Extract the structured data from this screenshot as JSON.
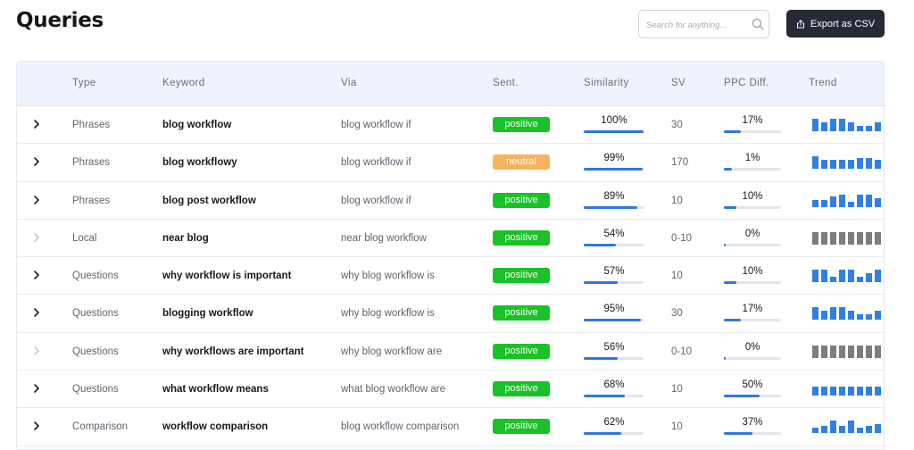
{
  "page": {
    "title": "Queries"
  },
  "search": {
    "placeholder": "Search for anything..."
  },
  "toolbar": {
    "export_label": "Export as CSV"
  },
  "colors": {
    "positive": "#19c227",
    "neutral": "#f6b45f",
    "accent": "#2f77e0",
    "trend_active": "#2f7fe8",
    "trend_flat": "#7d7d7d"
  },
  "table": {
    "headers": {
      "type": "Type",
      "keyword": "Keyword",
      "via": "Via",
      "sent": "Sent.",
      "similarity": "Similarity",
      "sv": "SV",
      "ppc": "PPC Diff.",
      "trend": "Trend"
    },
    "rows": [
      {
        "expandable": true,
        "type": "Phrases",
        "keyword": "blog workflow",
        "via": "blog workflow if",
        "sent": "positive",
        "similarity": "100%",
        "sim_value": 1.0,
        "sv": "30",
        "ppc": "17%",
        "ppc_value": 0.17,
        "trend": [
          0.58,
          0.42,
          0.58,
          0.58,
          0.42,
          0.25,
          0.25,
          0.42,
          0.42
        ],
        "trend_active": true
      },
      {
        "expandable": true,
        "type": "Phrases",
        "keyword": "blog workflowy",
        "via": "blog workflow if",
        "sent": "neutral",
        "similarity": "99%",
        "sim_value": 0.99,
        "sv": "170",
        "ppc": "1%",
        "ppc_value": 0.01,
        "trend": [
          0.58,
          0.42,
          0.42,
          0.42,
          0.42,
          0.5,
          0.5,
          0.42,
          0.5
        ],
        "trend_active": true
      },
      {
        "expandable": true,
        "type": "Phrases",
        "keyword": "blog post workflow",
        "via": "blog workflow if",
        "sent": "positive",
        "similarity": "89%",
        "sim_value": 0.89,
        "sv": "10",
        "ppc": "10%",
        "ppc_value": 0.1,
        "trend": [
          0.33,
          0.33,
          0.5,
          0.58,
          0.25,
          0.58,
          0.58,
          0.42,
          0.33
        ],
        "trend_active": true
      },
      {
        "expandable": false,
        "type": "Local",
        "keyword": "near blog",
        "via": "near blog workflow",
        "sent": "positive",
        "similarity": "54%",
        "sim_value": 0.54,
        "sv": "0-10",
        "ppc": "0%",
        "ppc_value": 0.0,
        "trend": [
          0.58,
          0.58,
          0.58,
          0.58,
          0.58,
          0.58,
          0.58,
          0.58,
          0.58
        ],
        "trend_active": false
      },
      {
        "expandable": true,
        "type": "Questions",
        "keyword": "why workflow is important",
        "via": "why blog workflow is",
        "sent": "positive",
        "similarity": "57%",
        "sim_value": 0.57,
        "sv": "10",
        "ppc": "10%",
        "ppc_value": 0.1,
        "trend": [
          0.58,
          0.58,
          0.25,
          0.58,
          0.58,
          0.25,
          0.42,
          0.58,
          0.42
        ],
        "trend_active": true
      },
      {
        "expandable": true,
        "type": "Questions",
        "keyword": "blogging workflow",
        "via": "why blog workflow is",
        "sent": "positive",
        "similarity": "95%",
        "sim_value": 0.95,
        "sv": "30",
        "ppc": "17%",
        "ppc_value": 0.17,
        "trend": [
          0.58,
          0.42,
          0.58,
          0.58,
          0.42,
          0.25,
          0.25,
          0.42,
          0.42
        ],
        "trend_active": true
      },
      {
        "expandable": false,
        "type": "Questions",
        "keyword": "why workflows are important",
        "via": "why blog workflow are",
        "sent": "positive",
        "similarity": "56%",
        "sim_value": 0.56,
        "sv": "0-10",
        "ppc": "0%",
        "ppc_value": 0.0,
        "trend": [
          0.58,
          0.58,
          0.58,
          0.58,
          0.58,
          0.58,
          0.58,
          0.58,
          0.58
        ],
        "trend_active": false
      },
      {
        "expandable": true,
        "type": "Questions",
        "keyword": "what workflow means",
        "via": "what blog workflow are",
        "sent": "positive",
        "similarity": "68%",
        "sim_value": 0.68,
        "sv": "10",
        "ppc": "50%",
        "ppc_value": 0.5,
        "trend": [
          0.42,
          0.42,
          0.42,
          0.42,
          0.42,
          0.42,
          0.42,
          0.42,
          0.42
        ],
        "trend_active": true
      },
      {
        "expandable": true,
        "type": "Comparison",
        "keyword": "workflow comparison",
        "via": "blog workflow comparison",
        "sent": "positive",
        "similarity": "62%",
        "sim_value": 0.62,
        "sv": "10",
        "ppc": "37%",
        "ppc_value": 0.37,
        "trend": [
          0.25,
          0.33,
          0.58,
          0.33,
          0.58,
          0.25,
          0.33,
          0.42,
          0.33
        ],
        "trend_active": true
      }
    ]
  }
}
